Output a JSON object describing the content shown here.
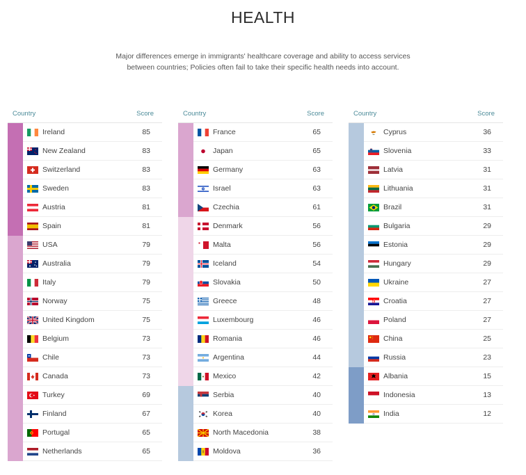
{
  "title": "HEALTH",
  "subtitle": {
    "line1": "Major differences emerge in immigrants' healthcare coverage and ability to access services",
    "line2": "between countries; Policies often fail to take their specific health needs into account."
  },
  "header": {
    "country": "Country",
    "score": "Score"
  },
  "colors": {
    "t1": "#c46fb3",
    "t2": "#daa6cf",
    "t3": "#efd6e8",
    "t4": "#b6c9de",
    "t5": "#7e9dc7"
  },
  "columns": [
    [
      {
        "name": "Ireland",
        "score": "85",
        "tier": "t1",
        "flag": "ireland-flag-icon"
      },
      {
        "name": "New Zealand",
        "score": "83",
        "tier": "t1",
        "flag": "new-zealand-flag-icon"
      },
      {
        "name": "Switzerland",
        "score": "83",
        "tier": "t1",
        "flag": "switzerland-flag-icon"
      },
      {
        "name": "Sweden",
        "score": "83",
        "tier": "t1",
        "flag": "sweden-flag-icon"
      },
      {
        "name": "Austria",
        "score": "81",
        "tier": "t1",
        "flag": "austria-flag-icon"
      },
      {
        "name": "Spain",
        "score": "81",
        "tier": "t1",
        "flag": "spain-flag-icon"
      },
      {
        "name": "USA",
        "score": "79",
        "tier": "t2",
        "flag": "usa-flag-icon"
      },
      {
        "name": "Australia",
        "score": "79",
        "tier": "t2",
        "flag": "australia-flag-icon"
      },
      {
        "name": "Italy",
        "score": "79",
        "tier": "t2",
        "flag": "italy-flag-icon"
      },
      {
        "name": "Norway",
        "score": "75",
        "tier": "t2",
        "flag": "norway-flag-icon"
      },
      {
        "name": "United Kingdom",
        "score": "75",
        "tier": "t2",
        "flag": "united-kingdom-flag-icon"
      },
      {
        "name": "Belgium",
        "score": "73",
        "tier": "t2",
        "flag": "belgium-flag-icon"
      },
      {
        "name": "Chile",
        "score": "73",
        "tier": "t2",
        "flag": "chile-flag-icon"
      },
      {
        "name": "Canada",
        "score": "73",
        "tier": "t2",
        "flag": "canada-flag-icon"
      },
      {
        "name": "Turkey",
        "score": "69",
        "tier": "t2",
        "flag": "turkey-flag-icon"
      },
      {
        "name": "Finland",
        "score": "67",
        "tier": "t2",
        "flag": "finland-flag-icon"
      },
      {
        "name": "Portugal",
        "score": "65",
        "tier": "t2",
        "flag": "portugal-flag-icon"
      },
      {
        "name": "Netherlands",
        "score": "65",
        "tier": "t2",
        "flag": "netherlands-flag-icon"
      }
    ],
    [
      {
        "name": "France",
        "score": "65",
        "tier": "t2",
        "flag": "france-flag-icon"
      },
      {
        "name": "Japan",
        "score": "65",
        "tier": "t2",
        "flag": "japan-flag-icon"
      },
      {
        "name": "Germany",
        "score": "63",
        "tier": "t2",
        "flag": "germany-flag-icon"
      },
      {
        "name": "Israel",
        "score": "63",
        "tier": "t2",
        "flag": "israel-flag-icon"
      },
      {
        "name": "Czechia",
        "score": "61",
        "tier": "t2",
        "flag": "czechia-flag-icon"
      },
      {
        "name": "Denmark",
        "score": "56",
        "tier": "t3",
        "flag": "denmark-flag-icon"
      },
      {
        "name": "Malta",
        "score": "56",
        "tier": "t3",
        "flag": "malta-flag-icon"
      },
      {
        "name": "Iceland",
        "score": "54",
        "tier": "t3",
        "flag": "iceland-flag-icon"
      },
      {
        "name": "Slovakia",
        "score": "50",
        "tier": "t3",
        "flag": "slovakia-flag-icon"
      },
      {
        "name": "Greece",
        "score": "48",
        "tier": "t3",
        "flag": "greece-flag-icon"
      },
      {
        "name": "Luxembourg",
        "score": "46",
        "tier": "t3",
        "flag": "luxembourg-flag-icon"
      },
      {
        "name": "Romania",
        "score": "46",
        "tier": "t3",
        "flag": "romania-flag-icon"
      },
      {
        "name": "Argentina",
        "score": "44",
        "tier": "t3",
        "flag": "argentina-flag-icon"
      },
      {
        "name": "Mexico",
        "score": "42",
        "tier": "t3",
        "flag": "mexico-flag-icon"
      },
      {
        "name": "Serbia",
        "score": "40",
        "tier": "t4",
        "flag": "serbia-flag-icon"
      },
      {
        "name": "Korea",
        "score": "40",
        "tier": "t4",
        "flag": "korea-flag-icon"
      },
      {
        "name": "North Macedonia",
        "score": "38",
        "tier": "t4",
        "flag": "north-macedonia-flag-icon"
      },
      {
        "name": "Moldova",
        "score": "36",
        "tier": "t4",
        "flag": "moldova-flag-icon"
      }
    ],
    [
      {
        "name": "Cyprus",
        "score": "36",
        "tier": "t4",
        "flag": "cyprus-flag-icon"
      },
      {
        "name": "Slovenia",
        "score": "33",
        "tier": "t4",
        "flag": "slovenia-flag-icon"
      },
      {
        "name": "Latvia",
        "score": "31",
        "tier": "t4",
        "flag": "latvia-flag-icon"
      },
      {
        "name": "Lithuania",
        "score": "31",
        "tier": "t4",
        "flag": "lithuania-flag-icon"
      },
      {
        "name": "Brazil",
        "score": "31",
        "tier": "t4",
        "flag": "brazil-flag-icon"
      },
      {
        "name": "Bulgaria",
        "score": "29",
        "tier": "t4",
        "flag": "bulgaria-flag-icon"
      },
      {
        "name": "Estonia",
        "score": "29",
        "tier": "t4",
        "flag": "estonia-flag-icon"
      },
      {
        "name": "Hungary",
        "score": "29",
        "tier": "t4",
        "flag": "hungary-flag-icon"
      },
      {
        "name": "Ukraine",
        "score": "27",
        "tier": "t4",
        "flag": "ukraine-flag-icon"
      },
      {
        "name": "Croatia",
        "score": "27",
        "tier": "t4",
        "flag": "croatia-flag-icon"
      },
      {
        "name": "Poland",
        "score": "27",
        "tier": "t4",
        "flag": "poland-flag-icon"
      },
      {
        "name": "China",
        "score": "25",
        "tier": "t4",
        "flag": "china-flag-icon"
      },
      {
        "name": "Russia",
        "score": "23",
        "tier": "t4",
        "flag": "russia-flag-icon"
      },
      {
        "name": "Albania",
        "score": "15",
        "tier": "t5",
        "flag": "albania-flag-icon"
      },
      {
        "name": "Indonesia",
        "score": "13",
        "tier": "t5",
        "flag": "indonesia-flag-icon"
      },
      {
        "name": "India",
        "score": "12",
        "tier": "t5",
        "flag": "india-flag-icon"
      }
    ]
  ]
}
